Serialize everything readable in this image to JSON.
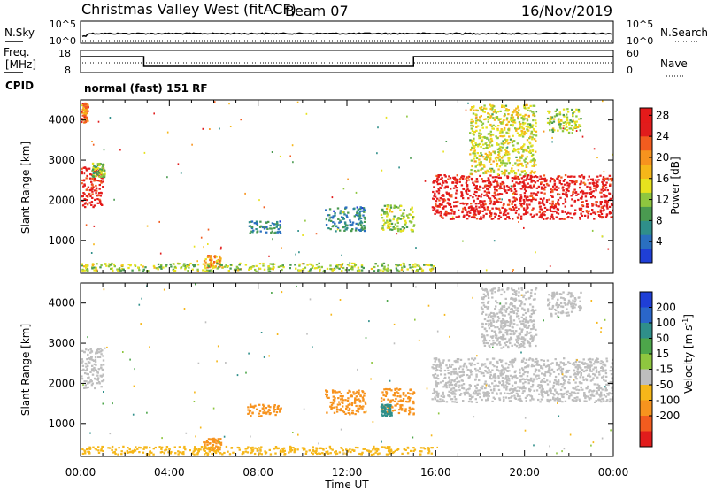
{
  "header": {
    "site": "Christmas Valley West (fitACF)",
    "beam": "Beam 07",
    "date": "16/Nov/2019"
  },
  "noise_panel": {
    "left_label": "N.Sky",
    "right_label": "N.Search",
    "left_ticks": [
      "10^5",
      "10^0"
    ],
    "right_ticks": [
      "10^5",
      "10^0"
    ]
  },
  "freq_panel": {
    "left_label_1": "Freq.",
    "left_label_2": "[MHz]",
    "left_ticks": [
      "18",
      "8"
    ],
    "right_label": "Nave",
    "right_ticks": [
      "60",
      "0"
    ]
  },
  "cpid": {
    "label": "CPID",
    "program": "normal (fast) 151 RF"
  },
  "time_axis": {
    "label": "Time UT",
    "ticks": [
      "00:00",
      "04:00",
      "08:00",
      "12:00",
      "16:00",
      "20:00",
      "00:00"
    ]
  },
  "chart_data": [
    {
      "type": "heatmap",
      "panel": "power",
      "xlabel": "Time UT",
      "ylabel": "Slant Range [km]",
      "xlim": [
        0,
        24
      ],
      "ylim": [
        180,
        4500
      ],
      "yticks": [
        1000,
        2000,
        3000,
        4000
      ],
      "colorbar": {
        "label": "Power [dB]",
        "ticks": [
          4,
          8,
          12,
          16,
          20,
          24,
          28
        ],
        "colors": [
          "#1f3fd6",
          "#2a6fc0",
          "#2f8f8a",
          "#4a9a50",
          "#8ec63f",
          "#e7e21e",
          "#f6b719",
          "#f7931e",
          "#f25c1f",
          "#e11c1c",
          "#e41a1a"
        ]
      },
      "regions": [
        {
          "t0": 0.0,
          "t1": 1.0,
          "r0": 1850,
          "r1": 2850,
          "value": 27
        },
        {
          "t0": 0.5,
          "t1": 1.1,
          "r0": 2600,
          "r1": 2950,
          "value": 13
        },
        {
          "t0": 0.0,
          "t1": 0.3,
          "r0": 3950,
          "r1": 4450,
          "value": 22
        },
        {
          "t0": 5.5,
          "t1": 6.3,
          "r0": 350,
          "r1": 650,
          "value": 20
        },
        {
          "t0": 0.0,
          "t1": 16.0,
          "r0": 250,
          "r1": 450,
          "value": 14
        },
        {
          "t0": 7.5,
          "t1": 9.0,
          "r0": 1200,
          "r1": 1500,
          "value": 8
        },
        {
          "t0": 11.0,
          "t1": 12.8,
          "r0": 1250,
          "r1": 1850,
          "value": 8
        },
        {
          "t0": 13.5,
          "t1": 15.0,
          "r0": 1250,
          "r1": 1900,
          "value": 14
        },
        {
          "t0": 15.8,
          "t1": 24.0,
          "r0": 1550,
          "r1": 2650,
          "value": 28
        },
        {
          "t0": 17.5,
          "t1": 20.5,
          "r0": 2650,
          "r1": 4400,
          "value": 16
        },
        {
          "t0": 21.0,
          "t1": 22.5,
          "r0": 3700,
          "r1": 4300,
          "value": 14
        }
      ]
    },
    {
      "type": "heatmap",
      "panel": "velocity",
      "xlabel": "Time UT",
      "ylabel": "Slant Range [km]",
      "xlim": [
        0,
        24
      ],
      "ylim": [
        180,
        4500
      ],
      "yticks": [
        1000,
        2000,
        3000,
        4000
      ],
      "colorbar": {
        "label": "Velocity [m s-1]",
        "ticks": [
          200,
          100,
          50,
          15,
          -15,
          -50,
          -100,
          -200
        ],
        "colors": [
          "#1f3fd6",
          "#2a66c9",
          "#2f8f8a",
          "#4da64a",
          "#8ec63f",
          "#bebebe",
          "#f6b719",
          "#f7931e",
          "#f25c1f",
          "#e11c1c"
        ]
      },
      "regions": [
        {
          "t0": 0.0,
          "t1": 1.0,
          "r0": 1900,
          "r1": 2900,
          "value": 0
        },
        {
          "t0": 5.5,
          "t1": 6.3,
          "r0": 350,
          "r1": 650,
          "value": -60
        },
        {
          "t0": 0.0,
          "t1": 16.0,
          "r0": 250,
          "r1": 450,
          "value": -40
        },
        {
          "t0": 7.5,
          "t1": 9.0,
          "r0": 1200,
          "r1": 1500,
          "value": -60
        },
        {
          "t0": 11.0,
          "t1": 12.8,
          "r0": 1250,
          "r1": 1850,
          "value": -60
        },
        {
          "t0": 13.5,
          "t1": 15.0,
          "r0": 1250,
          "r1": 1900,
          "value": -70
        },
        {
          "t0": 13.5,
          "t1": 14.0,
          "r0": 1200,
          "r1": 1500,
          "value": 40
        },
        {
          "t0": 15.8,
          "t1": 24.0,
          "r0": 1550,
          "r1": 2650,
          "value": 0
        },
        {
          "t0": 18.0,
          "t1": 20.5,
          "r0": 2900,
          "r1": 4400,
          "value": 0
        },
        {
          "t0": 21.0,
          "t1": 22.5,
          "r0": 3700,
          "r1": 4300,
          "value": 0
        }
      ]
    }
  ]
}
